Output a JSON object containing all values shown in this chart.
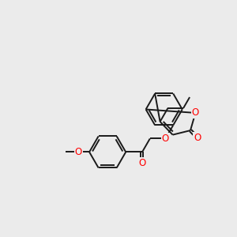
{
  "bg_color": "#ebebeb",
  "bond_color": "#1a1a1a",
  "heteroatom_color": "#ff0000",
  "bond_width": 1.4,
  "font_size": 8.5,
  "fig_width": 3.0,
  "fig_height": 3.0,
  "dpi": 100,
  "xlim": [
    -1.5,
    11.5
  ],
  "ylim": [
    -1.0,
    9.0
  ]
}
